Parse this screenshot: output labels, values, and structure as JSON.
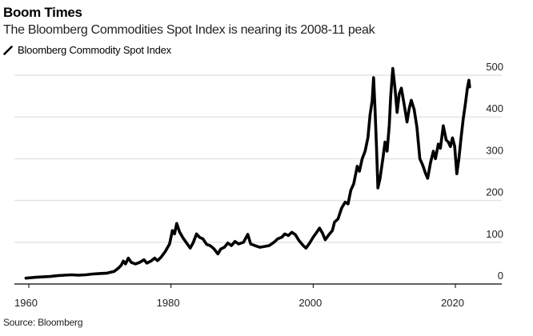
{
  "header": {
    "title": "Boom Times",
    "subtitle": "The Bloomberg Commodities Spot Index is nearing its 2008-11 peak"
  },
  "legend": {
    "items": [
      {
        "label": "Bloomberg Commodity Spot Index",
        "icon": "line-swatch-icon",
        "color": "#000000"
      }
    ]
  },
  "footer": {
    "source": "Source: Bloomberg"
  },
  "chart_data": {
    "type": "line",
    "title": "Boom Times",
    "subtitle": "The Bloomberg Commodities Spot Index is nearing its 2008-11 peak",
    "xlabel": "",
    "ylabel": "",
    "xlim": [
      1958,
      2026
    ],
    "ylim": [
      0,
      500
    ],
    "x_ticks": [
      1960,
      1980,
      2000,
      2020
    ],
    "x_tick_labels": [
      "1960",
      "1980",
      "2000",
      "2020"
    ],
    "y_ticks": [
      0,
      100,
      200,
      300,
      400,
      500
    ],
    "y_tick_labels": [
      "0",
      "100",
      "200",
      "300",
      "400",
      "500"
    ],
    "y_axis_side": "right",
    "grid": "horizontal",
    "legend_position": "top-left",
    "source": "Source: Bloomberg",
    "series": [
      {
        "name": "Bloomberg Commodity Spot Index",
        "color": "#000000",
        "points": [
          [
            1959.6,
            14
          ],
          [
            1961,
            16
          ],
          [
            1962,
            17
          ],
          [
            1963,
            18
          ],
          [
            1964,
            20
          ],
          [
            1965,
            21
          ],
          [
            1966,
            22
          ],
          [
            1967,
            21
          ],
          [
            1968,
            22
          ],
          [
            1969,
            24
          ],
          [
            1970,
            25
          ],
          [
            1971,
            26
          ],
          [
            1972,
            30
          ],
          [
            1972.6,
            38
          ],
          [
            1973.0,
            45
          ],
          [
            1973.3,
            55
          ],
          [
            1973.6,
            48
          ],
          [
            1974.0,
            62
          ],
          [
            1974.4,
            52
          ],
          [
            1975.0,
            48
          ],
          [
            1975.6,
            52
          ],
          [
            1976.2,
            58
          ],
          [
            1976.6,
            50
          ],
          [
            1977.2,
            55
          ],
          [
            1977.7,
            62
          ],
          [
            1978.1,
            56
          ],
          [
            1978.6,
            64
          ],
          [
            1979.2,
            78
          ],
          [
            1979.8,
            96
          ],
          [
            1980.2,
            128
          ],
          [
            1980.5,
            120
          ],
          [
            1980.8,
            145
          ],
          [
            1981.2,
            125
          ],
          [
            1981.7,
            110
          ],
          [
            1982.2,
            98
          ],
          [
            1982.7,
            86
          ],
          [
            1983.1,
            98
          ],
          [
            1983.6,
            120
          ],
          [
            1984.0,
            112
          ],
          [
            1984.5,
            108
          ],
          [
            1985.0,
            95
          ],
          [
            1985.5,
            92
          ],
          [
            1986.0,
            85
          ],
          [
            1986.6,
            72
          ],
          [
            1987.0,
            84
          ],
          [
            1987.5,
            88
          ],
          [
            1988.0,
            98
          ],
          [
            1988.5,
            92
          ],
          [
            1989.0,
            102
          ],
          [
            1989.5,
            96
          ],
          [
            1990.2,
            100
          ],
          [
            1990.8,
            119
          ],
          [
            1991.2,
            96
          ],
          [
            1991.8,
            92
          ],
          [
            1992.5,
            88
          ],
          [
            1993.2,
            90
          ],
          [
            1993.8,
            92
          ],
          [
            1994.5,
            100
          ],
          [
            1995.0,
            108
          ],
          [
            1995.6,
            112
          ],
          [
            1996.0,
            120
          ],
          [
            1996.5,
            116
          ],
          [
            1997.0,
            124
          ],
          [
            1997.5,
            118
          ],
          [
            1998.0,
            104
          ],
          [
            1998.6,
            92
          ],
          [
            1999.0,
            86
          ],
          [
            1999.5,
            98
          ],
          [
            2000.0,
            112
          ],
          [
            2000.5,
            124
          ],
          [
            2000.9,
            134
          ],
          [
            2001.3,
            122
          ],
          [
            2001.7,
            106
          ],
          [
            2002.2,
            118
          ],
          [
            2002.7,
            128
          ],
          [
            2003.0,
            148
          ],
          [
            2003.5,
            156
          ],
          [
            2004.0,
            182
          ],
          [
            2004.5,
            196
          ],
          [
            2004.9,
            192
          ],
          [
            2005.3,
            225
          ],
          [
            2005.7,
            240
          ],
          [
            2006.2,
            282
          ],
          [
            2006.5,
            270
          ],
          [
            2006.9,
            300
          ],
          [
            2007.3,
            318
          ],
          [
            2007.7,
            350
          ],
          [
            2008.0,
            405
          ],
          [
            2008.3,
            440
          ],
          [
            2008.5,
            494
          ],
          [
            2008.7,
            420
          ],
          [
            2008.9,
            330
          ],
          [
            2009.1,
            230
          ],
          [
            2009.4,
            252
          ],
          [
            2009.8,
            300
          ],
          [
            2010.1,
            340
          ],
          [
            2010.4,
            318
          ],
          [
            2010.7,
            380
          ],
          [
            2010.9,
            450
          ],
          [
            2011.2,
            516
          ],
          [
            2011.5,
            470
          ],
          [
            2011.8,
            411
          ],
          [
            2012.1,
            455
          ],
          [
            2012.4,
            469
          ],
          [
            2012.8,
            430
          ],
          [
            2013.2,
            388
          ],
          [
            2013.5,
            420
          ],
          [
            2013.8,
            440
          ],
          [
            2014.2,
            418
          ],
          [
            2014.6,
            375
          ],
          [
            2015.0,
            300
          ],
          [
            2015.4,
            285
          ],
          [
            2015.8,
            265
          ],
          [
            2016.1,
            253
          ],
          [
            2016.5,
            290
          ],
          [
            2016.9,
            318
          ],
          [
            2017.2,
            300
          ],
          [
            2017.6,
            335
          ],
          [
            2017.9,
            325
          ],
          [
            2018.3,
            379
          ],
          [
            2018.7,
            345
          ],
          [
            2019.0,
            340
          ],
          [
            2019.3,
            329
          ],
          [
            2019.6,
            350
          ],
          [
            2019.9,
            330
          ],
          [
            2020.2,
            264
          ],
          [
            2020.5,
            300
          ],
          [
            2020.8,
            350
          ],
          [
            2021.1,
            395
          ],
          [
            2021.4,
            430
          ],
          [
            2021.7,
            470
          ],
          [
            2021.9,
            488
          ],
          [
            2022.0,
            472
          ]
        ]
      }
    ]
  }
}
